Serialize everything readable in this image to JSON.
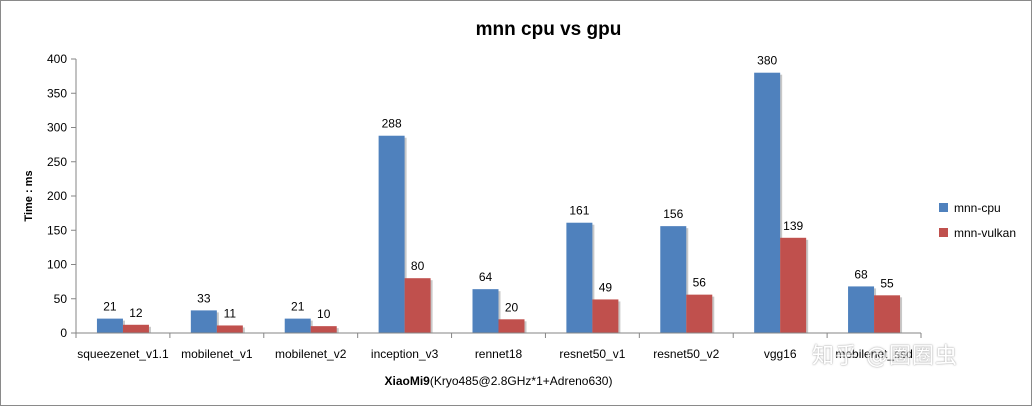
{
  "chart_data": {
    "type": "bar",
    "title": "mnn cpu vs gpu",
    "xlabel_bold": "XiaoMi9",
    "xlabel_rest": "(Kryo485@2.8GHz*1+Adreno630)",
    "ylabel": "Time : ms",
    "ylim": [
      0,
      400
    ],
    "yticks": [
      "0",
      "50",
      "100",
      "150",
      "200",
      "250",
      "300",
      "350",
      "400"
    ],
    "categories": [
      "squeezenet_v1.1",
      "mobilenet_v1",
      "mobilenet_v2",
      "inception_v3",
      "rennet18",
      "resnet50_v1",
      "resnet50_v2",
      "vgg16",
      "mobilenet_ssd"
    ],
    "series": [
      {
        "name": "mnn-cpu",
        "color": "#4f81bd",
        "values": [
          21,
          33,
          21,
          288,
          64,
          161,
          156,
          380,
          68
        ]
      },
      {
        "name": "mnn-vulkan",
        "color": "#c0504d",
        "values": [
          12,
          11,
          10,
          80,
          20,
          49,
          56,
          139,
          55
        ]
      }
    ],
    "grid": false,
    "legend_position": "right"
  },
  "watermark": "知乎 @圈圈虫"
}
